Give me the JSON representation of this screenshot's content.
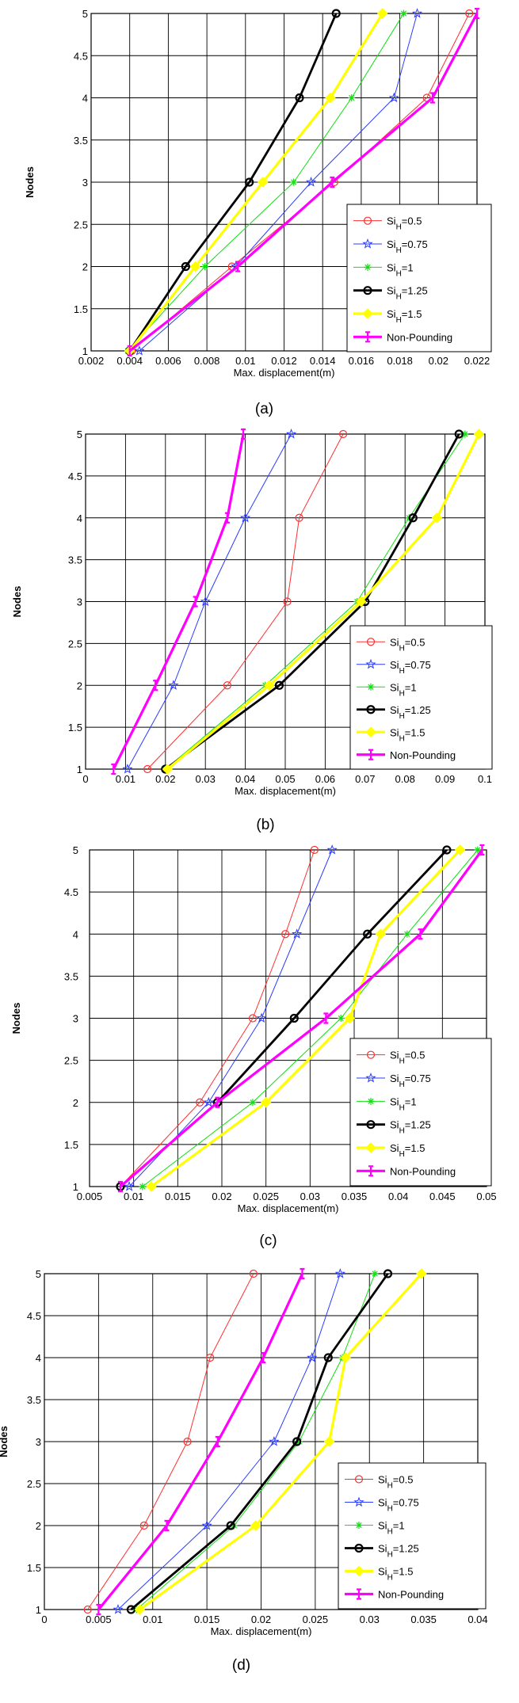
{
  "chart_data": [
    {
      "panel_label": "(a)",
      "type": "line",
      "xlabel": "Max. displacement(m)",
      "ylabel": "Nodes",
      "xlim": [
        0.002,
        0.022
      ],
      "ylim": [
        1,
        5
      ],
      "xticks": [
        0.002,
        0.004,
        0.006,
        0.008,
        0.01,
        0.012,
        0.014,
        0.016,
        0.018,
        0.02,
        0.022
      ],
      "xtick_labels": [
        "0.002",
        "0.004",
        "0.006",
        "0.008",
        "0.01",
        "0.012",
        "0.014",
        "0.016",
        "0.018",
        "0.02",
        "0.022"
      ],
      "yticks": [
        1,
        1.5,
        2,
        2.5,
        3,
        3.5,
        4,
        4.5,
        5
      ],
      "ytick_labels": [
        "1",
        "1.5",
        "2",
        "2.5",
        "3",
        "3.5",
        "4",
        "4.5",
        "5"
      ],
      "grid": true,
      "legend_position": "bottom-right",
      "series": [
        {
          "name": "SiH=0.5",
          "color": "#ff3030",
          "marker": "circle",
          "x": [
            0.0041,
            0.0093,
            0.0146,
            0.0194,
            0.0216
          ],
          "y": [
            1,
            2,
            3,
            4,
            5
          ]
        },
        {
          "name": "SiH=0.75",
          "color": "#2a3cff",
          "marker": "star",
          "x": [
            0.0045,
            0.0095,
            0.0134,
            0.0177,
            0.0189
          ],
          "y": [
            1,
            2,
            3,
            4,
            5
          ]
        },
        {
          "name": "SiH=1",
          "color": "#10e010",
          "marker": "asterisk",
          "x": [
            0.0039,
            0.0079,
            0.0125,
            0.0155,
            0.0182
          ],
          "y": [
            1,
            2,
            3,
            4,
            5
          ]
        },
        {
          "name": "SiH=1.25",
          "color": "#000000",
          "marker": "circle",
          "x": [
            0.004,
            0.0069,
            0.0102,
            0.0128,
            0.0147
          ],
          "y": [
            1,
            2,
            3,
            4,
            5
          ]
        },
        {
          "name": "SiH=1.5",
          "color": "#ffff00",
          "marker": "diamond",
          "x": [
            0.004,
            0.0074,
            0.0109,
            0.0144,
            0.0171
          ],
          "y": [
            1,
            2,
            3,
            4,
            5
          ]
        },
        {
          "name": "Non-Pounding",
          "color": "#ff00ff",
          "marker": "bar",
          "x": [
            0.004,
            0.0096,
            0.0145,
            0.0197,
            0.022
          ],
          "y": [
            1,
            2,
            3,
            4,
            5
          ]
        }
      ]
    },
    {
      "panel_label": "(b)",
      "type": "line",
      "xlabel": "Max. displacement(m)",
      "ylabel": "Nodes",
      "xlim": [
        0,
        0.1
      ],
      "ylim": [
        1,
        5
      ],
      "xticks": [
        0,
        0.01,
        0.02,
        0.03,
        0.04,
        0.05,
        0.06,
        0.07,
        0.08,
        0.09,
        0.1
      ],
      "xtick_labels": [
        "0",
        "0.01",
        "0.02",
        "0.03",
        "0.04",
        "0.05",
        "0.06",
        "0.07",
        "0.08",
        "0.09",
        "0.1"
      ],
      "yticks": [
        1,
        1.5,
        2,
        2.5,
        3,
        3.5,
        4,
        4.5,
        5
      ],
      "ytick_labels": [
        "1",
        "1.5",
        "2",
        "2.5",
        "3",
        "3.5",
        "4",
        "4.5",
        "5"
      ],
      "grid": true,
      "legend_position": "bottom-right",
      "series": [
        {
          "name": "SiH=0.5",
          "color": "#ff3030",
          "marker": "circle",
          "x": [
            0.0155,
            0.0355,
            0.0505,
            0.0535,
            0.0645
          ],
          "y": [
            1,
            2,
            3,
            4,
            5
          ]
        },
        {
          "name": "SiH=0.75",
          "color": "#2a3cff",
          "marker": "star",
          "x": [
            0.0105,
            0.022,
            0.03,
            0.04,
            0.0515
          ],
          "y": [
            1,
            2,
            3,
            4,
            5
          ]
        },
        {
          "name": "SiH=1",
          "color": "#10e010",
          "marker": "asterisk",
          "x": [
            0.02,
            0.045,
            0.068,
            0.081,
            0.095
          ],
          "y": [
            1,
            2,
            3,
            4,
            5
          ]
        },
        {
          "name": "SiH=1.25",
          "color": "#000000",
          "marker": "circle",
          "x": [
            0.02,
            0.0485,
            0.07,
            0.082,
            0.0935
          ],
          "y": [
            1,
            2,
            3,
            4,
            5
          ]
        },
        {
          "name": "SiH=1.5",
          "color": "#ffff00",
          "marker": "diamond",
          "x": [
            0.0205,
            0.046,
            0.069,
            0.088,
            0.0985
          ],
          "y": [
            1,
            2,
            3,
            4,
            5
          ]
        },
        {
          "name": "Non-Pounding",
          "color": "#ff00ff",
          "marker": "bar",
          "x": [
            0.007,
            0.0175,
            0.0275,
            0.0355,
            0.0395
          ],
          "y": [
            1,
            2,
            3,
            4,
            5
          ]
        }
      ]
    },
    {
      "panel_label": "(c)",
      "type": "line",
      "xlabel": "Max. displacement(m)",
      "ylabel": "Nodes",
      "xlim": [
        0.005,
        0.05
      ],
      "ylim": [
        1,
        5
      ],
      "xticks": [
        0.005,
        0.01,
        0.015,
        0.02,
        0.025,
        0.03,
        0.035,
        0.04,
        0.045,
        0.05
      ],
      "xtick_labels": [
        "0.005",
        "0.01",
        "0.015",
        "0.02",
        "0.025",
        "0.03",
        "0.035",
        "0.04",
        "0.045",
        "0.05"
      ],
      "yticks": [
        1,
        1.5,
        2,
        2.5,
        3,
        3.5,
        4,
        4.5,
        5
      ],
      "ytick_labels": [
        "1",
        "1.5",
        "2",
        "2.5",
        "3",
        "3.5",
        "4",
        "4.5",
        "5"
      ],
      "grid": true,
      "legend_position": "bottom-right",
      "series": [
        {
          "name": "SiH=0.5",
          "color": "#ff3030",
          "marker": "circle",
          "x": [
            0.0085,
            0.0175,
            0.0235,
            0.0272,
            0.0305
          ],
          "y": [
            1,
            2,
            3,
            4,
            5
          ]
        },
        {
          "name": "SiH=0.75",
          "color": "#2a3cff",
          "marker": "star",
          "x": [
            0.0095,
            0.0185,
            0.0245,
            0.0285,
            0.0325
          ],
          "y": [
            1,
            2,
            3,
            4,
            5
          ]
        },
        {
          "name": "SiH=1",
          "color": "#10e010",
          "marker": "asterisk",
          "x": [
            0.011,
            0.0235,
            0.0335,
            0.041,
            0.049
          ],
          "y": [
            1,
            2,
            3,
            4,
            5
          ]
        },
        {
          "name": "SiH=1.25",
          "color": "#000000",
          "marker": "circle",
          "x": [
            0.0085,
            0.0195,
            0.0282,
            0.0365,
            0.0455
          ],
          "y": [
            1,
            2,
            3,
            4,
            5
          ]
        },
        {
          "name": "SiH=1.5",
          "color": "#ffff00",
          "marker": "diamond",
          "x": [
            0.012,
            0.025,
            0.0345,
            0.038,
            0.047
          ],
          "y": [
            1,
            2,
            3,
            4,
            5
          ]
        },
        {
          "name": "Non-Pounding",
          "color": "#ff00ff",
          "marker": "bar",
          "x": [
            0.0085,
            0.0195,
            0.0318,
            0.0425,
            0.0495
          ],
          "y": [
            1,
            2,
            3,
            4,
            5
          ]
        }
      ]
    },
    {
      "panel_label": "(d)",
      "type": "line",
      "xlabel": "Max. displacement(m)",
      "ylabel": "Nodes",
      "xlim": [
        0,
        0.04
      ],
      "ylim": [
        1,
        5
      ],
      "xticks": [
        0,
        0.005,
        0.01,
        0.015,
        0.02,
        0.025,
        0.03,
        0.035,
        0.04
      ],
      "xtick_labels": [
        "0",
        "0.005",
        "0.01",
        "0.015",
        "0.02",
        "0.025",
        "0.03",
        "0.035",
        "0.04"
      ],
      "yticks": [
        1,
        1.5,
        2,
        2.5,
        3,
        3.5,
        4,
        4.5,
        5
      ],
      "ytick_labels": [
        "1",
        "1.5",
        "2",
        "2.5",
        "3",
        "3.5",
        "4",
        "4.5",
        "5"
      ],
      "grid": true,
      "legend_position": "bottom-right",
      "series": [
        {
          "name": "SiH=0.5",
          "color": "#ff3030",
          "marker": "circle",
          "x": [
            0.004,
            0.0092,
            0.0132,
            0.0153,
            0.0193
          ],
          "y": [
            1,
            2,
            3,
            4,
            5
          ]
        },
        {
          "name": "SiH=0.75",
          "color": "#2a3cff",
          "marker": "star",
          "x": [
            0.0068,
            0.015,
            0.0212,
            0.0247,
            0.0273
          ],
          "y": [
            1,
            2,
            3,
            4,
            5
          ]
        },
        {
          "name": "SiH=1",
          "color": "#10e010",
          "marker": "asterisk",
          "x": [
            0.0085,
            0.0175,
            0.0235,
            0.0275,
            0.0305
          ],
          "y": [
            1,
            2,
            3,
            4,
            5
          ]
        },
        {
          "name": "SiH=1.25",
          "color": "#000000",
          "marker": "circle",
          "x": [
            0.008,
            0.0172,
            0.0233,
            0.0262,
            0.0317
          ],
          "y": [
            1,
            2,
            3,
            4,
            5
          ]
        },
        {
          "name": "SiH=1.5",
          "color": "#ffff00",
          "marker": "diamond",
          "x": [
            0.0088,
            0.0195,
            0.0263,
            0.0278,
            0.0348
          ],
          "y": [
            1,
            2,
            3,
            4,
            5
          ]
        },
        {
          "name": "Non-Pounding",
          "color": "#ff00ff",
          "marker": "bar",
          "x": [
            0.005,
            0.0113,
            0.016,
            0.0202,
            0.0238
          ],
          "y": [
            1,
            2,
            3,
            4,
            5
          ]
        }
      ]
    }
  ]
}
